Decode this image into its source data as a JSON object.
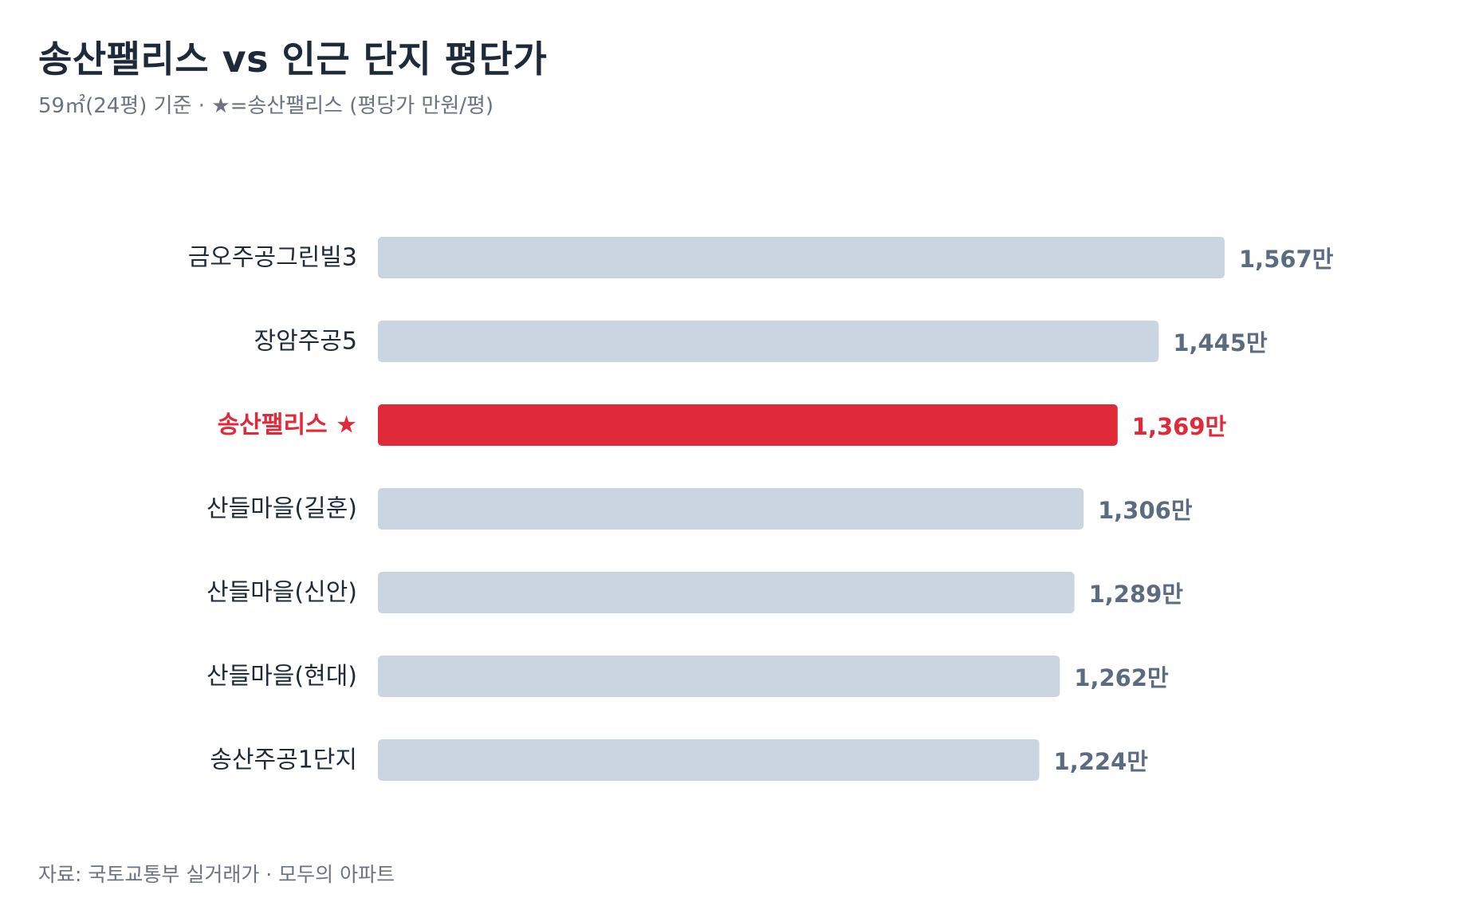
{
  "header": {
    "title": "송산팰리스 vs 인근 단지 평단가",
    "subtitle": "59㎡(24평) 기준 · ★=송산팰리스 (평당가 만원/평)"
  },
  "footer": {
    "source": "자료: 국토교통부 실거래가 · 모두의 아파트"
  },
  "colors": {
    "default_bar": "#cbd5e1",
    "highlight_bar": "#e02a3a",
    "default_label": "#1e2a3a",
    "default_value": "#5b6b80",
    "highlight_text": "#e02a3a"
  },
  "chart_data": {
    "type": "bar",
    "orientation": "horizontal",
    "title": "송산팰리스 vs 인근 단지 평단가",
    "subtitle": "59㎡(24평) 기준 · ★=송산팰리스 (평당가 만원/평)",
    "unit_suffix": "만",
    "categories": [
      "금오주공그린빌3",
      "장암주공5",
      "송산팰리스 ★",
      "산들마을(길훈)",
      "산들마을(신안)",
      "산들마을(현대)",
      "송산주공1단지"
    ],
    "values": [
      1567,
      1445,
      1369,
      1306,
      1289,
      1262,
      1224
    ],
    "value_labels": [
      "1,567만",
      "1,445만",
      "1,369만",
      "1,306만",
      "1,289만",
      "1,262만",
      "1,224만"
    ],
    "highlight_index": 2,
    "xlim": [
      0,
      1567
    ],
    "grid": false,
    "legend": "none"
  }
}
